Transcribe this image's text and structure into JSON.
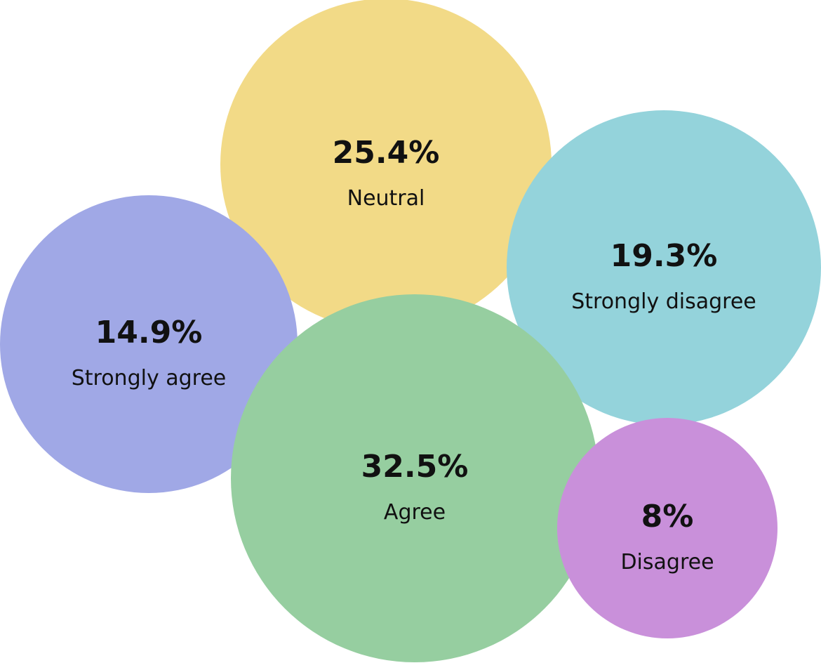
{
  "chart_data": {
    "type": "bubble",
    "title": "",
    "series": [
      {
        "label": "Neutral",
        "value": 25.4,
        "display": "25.4%",
        "color": "#F2DA87"
      },
      {
        "label": "Strongly disagree",
        "value": 19.3,
        "display": "19.3%",
        "color": "#94D3DB"
      },
      {
        "label": "Strongly agree",
        "value": 14.9,
        "display": "14.9%",
        "color": "#A0A8E6"
      },
      {
        "label": "Agree",
        "value": 32.5,
        "display": "32.5%",
        "color": "#96CEA0"
      },
      {
        "label": "Disagree",
        "value": 8,
        "display": "8%",
        "color": "#C990DA"
      }
    ]
  }
}
